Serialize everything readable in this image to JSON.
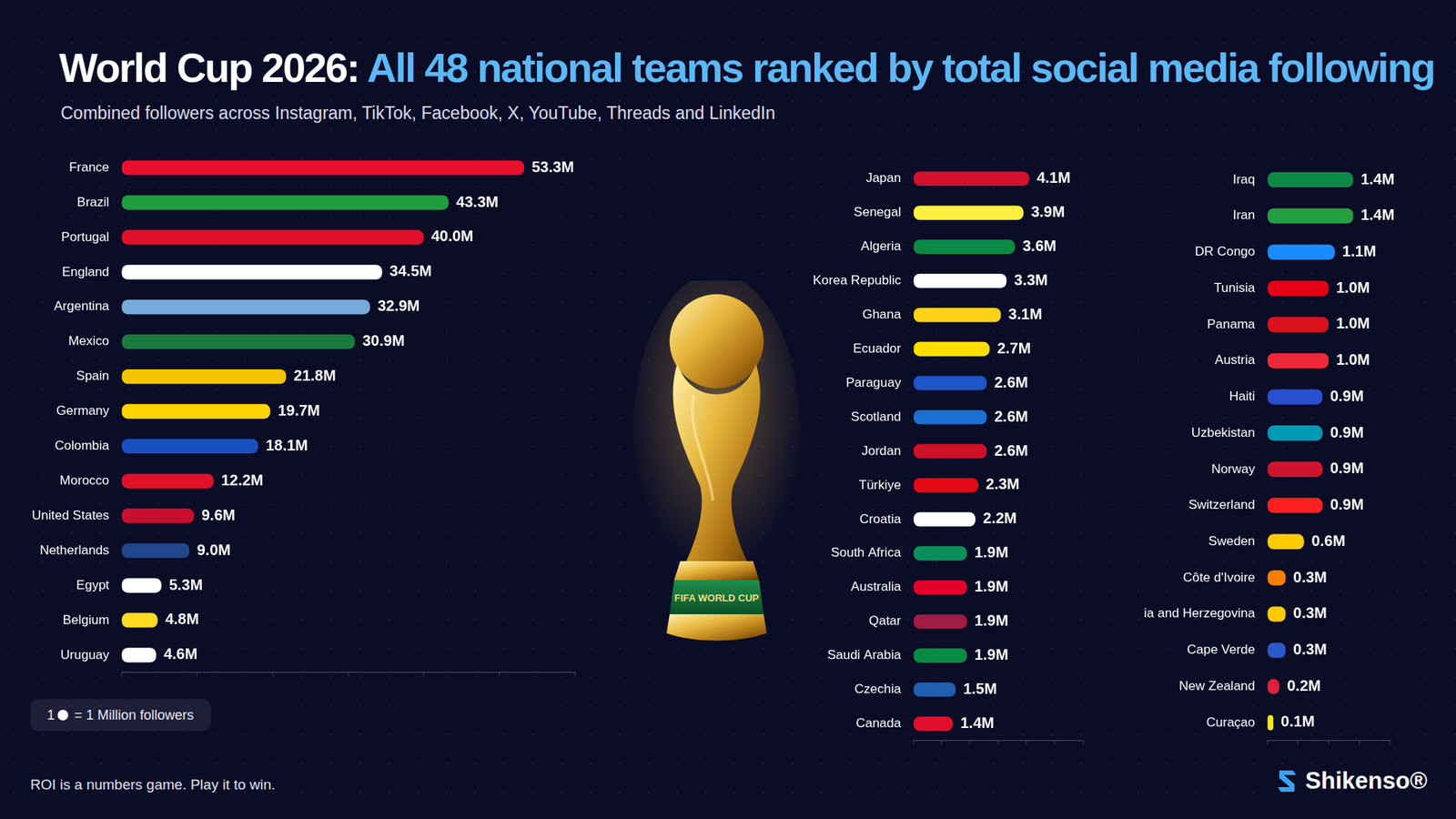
{
  "header": {
    "title": "World Cup 2026:",
    "title_highlight": "All 48 national teams ranked by total social media following",
    "subtitle": "Combined followers across Instagram, TikTok, Facebook, X, YouTube, Threads and LinkedIn"
  },
  "trophy_text": "FIFA WORLD CUP",
  "key": {
    "value": 1,
    "label": "= 1 Million followers"
  },
  "footer": {
    "tagline": "ROI is a numbers game. Play it to win.",
    "brand": "Shikenso®"
  },
  "chart_data": [
    {
      "type": "bar",
      "orientation": "horizontal",
      "data_labels": true,
      "tick_labels": "y",
      "grid": false,
      "categories": [
        "France",
        "Brazil",
        "Portugal",
        "England",
        "Argentina",
        "Mexico",
        "Spain",
        "Germany",
        "Colombia",
        "Morocco",
        "United States",
        "Netherlands",
        "Egypt",
        "Belgium",
        "Uruguay"
      ],
      "values": [
        53.3,
        43.3,
        40.0,
        34.5,
        32.9,
        30.9,
        21.8,
        19.7,
        18.1,
        12.2,
        9.6,
        9.0,
        5.3,
        4.8,
        4.6
      ],
      "value_labels": [
        "53.3M",
        "43.3M",
        "40.0M",
        "34.5M",
        "32.9M",
        "30.9M",
        "21.8M",
        "19.7M",
        "18.1M",
        "12.2M",
        "9.6M",
        "9.0M",
        "5.3M",
        "4.8M",
        "4.6M"
      ],
      "colors": [
        "#e8112d",
        "#1f9d3f",
        "#e0102a",
        "#ffffff",
        "#75aadb",
        "#1a7a3c",
        "#f5c400",
        "#ffd400",
        "#1a4fbf",
        "#e0102a",
        "#c8102e",
        "#21468b",
        "#ffffff",
        "#fdda24",
        "#ffffff"
      ],
      "xlim": [
        0,
        60
      ],
      "xticks": [
        0,
        10,
        20,
        30,
        40,
        50,
        60
      ]
    },
    {
      "type": "bar",
      "orientation": "horizontal",
      "data_labels": true,
      "tick_labels": "y",
      "grid": false,
      "categories": [
        "Japan",
        "Senegal",
        "Algeria",
        "Korea Republic",
        "Ghana",
        "Ecuador",
        "Paraguay",
        "Scotland",
        "Jordan",
        "Türkiye",
        "Croatia",
        "South Africa",
        "Australia",
        "Qatar",
        "Saudi Arabia",
        "Czechia",
        "Canada"
      ],
      "values": [
        4.1,
        3.9,
        3.6,
        3.3,
        3.1,
        2.7,
        2.6,
        2.6,
        2.6,
        2.3,
        2.2,
        1.9,
        1.9,
        1.9,
        1.9,
        1.5,
        1.4
      ],
      "value_labels": [
        "4.1M",
        "3.9M",
        "3.6M",
        "3.3M",
        "3.1M",
        "2.7M",
        "2.6M",
        "2.6M",
        "2.6M",
        "2.3M",
        "2.2M",
        "1.9M",
        "1.9M",
        "1.9M",
        "1.9M",
        "1.5M",
        "1.4M"
      ],
      "colors": [
        "#d3102e",
        "#fdef42",
        "#0a8a45",
        "#ffffff",
        "#fcd116",
        "#ffdd00",
        "#1f55c8",
        "#1a6fd0",
        "#ce1126",
        "#e30a17",
        "#ffffff",
        "#0a8f5a",
        "#e4002b",
        "#a01c45",
        "#0a8a45",
        "#1f5fae",
        "#e0102a"
      ],
      "xlim": [
        0,
        6
      ],
      "xticks": [
        0,
        1,
        2,
        3,
        4,
        5,
        6
      ]
    },
    {
      "type": "bar",
      "orientation": "horizontal",
      "data_labels": true,
      "tick_labels": "y",
      "grid": false,
      "categories": [
        "Iraq",
        "Iran",
        "DR Congo",
        "Tunisia",
        "Panama",
        "Austria",
        "Haiti",
        "Uzbekistan",
        "Norway",
        "Switzerland",
        "Sweden",
        "Côte d'Ivoire",
        "Bosnia and Herzegovina",
        "Cape Verde",
        "New Zealand",
        "Curaçao"
      ],
      "values": [
        1.4,
        1.4,
        1.1,
        1.0,
        1.0,
        1.0,
        0.9,
        0.9,
        0.9,
        0.9,
        0.6,
        0.3,
        0.3,
        0.3,
        0.2,
        0.1
      ],
      "value_labels": [
        "1.4M",
        "1.4M",
        "1.1M",
        "1.0M",
        "1.0M",
        "1.0M",
        "0.9M",
        "0.9M",
        "0.9M",
        "0.9M",
        "0.6M",
        "0.3M",
        "0.3M",
        "0.3M",
        "0.2M",
        "0.1M"
      ],
      "colors": [
        "#0a8a45",
        "#239f40",
        "#1a8cff",
        "#e70013",
        "#da121a",
        "#ed2939",
        "#2a4fd0",
        "#0099b5",
        "#d0142f",
        "#ff2020",
        "#fecc02",
        "#f77f00",
        "#fecb00",
        "#2a5ac8",
        "#e0203a",
        "#f9e814"
      ],
      "xlim": [
        0,
        2
      ],
      "xticks": [
        0,
        0.5,
        1,
        1.5,
        2
      ]
    }
  ]
}
